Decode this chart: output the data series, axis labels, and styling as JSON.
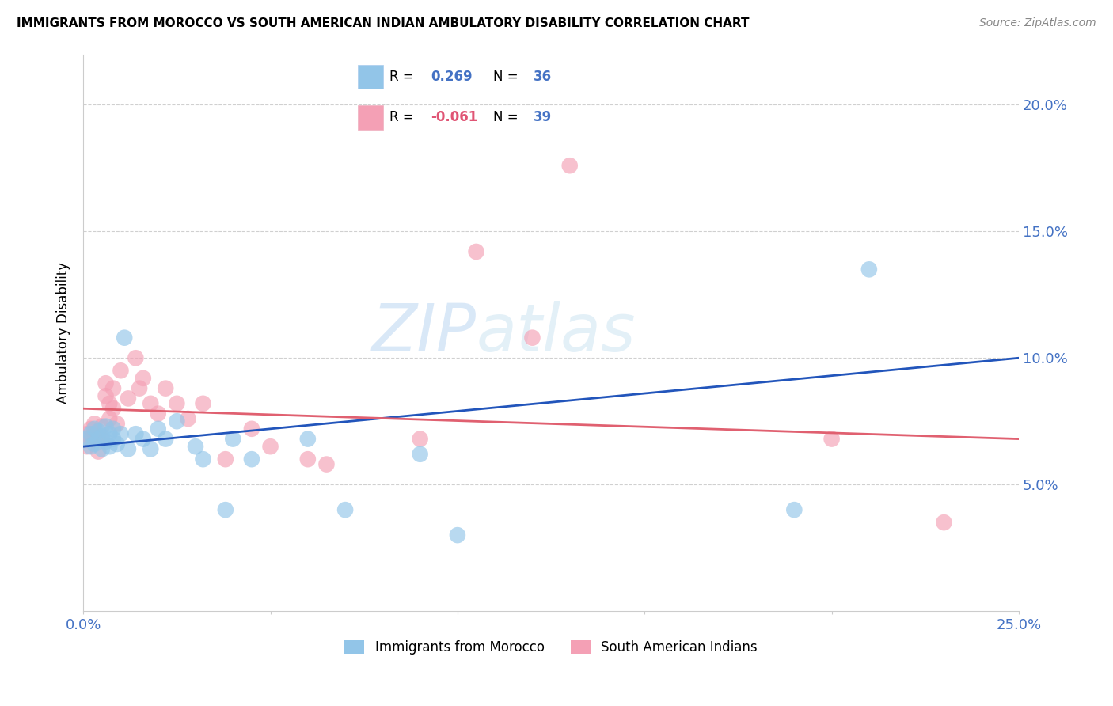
{
  "title": "IMMIGRANTS FROM MOROCCO VS SOUTH AMERICAN INDIAN AMBULATORY DISABILITY CORRELATION CHART",
  "source": "Source: ZipAtlas.com",
  "ylabel": "Ambulatory Disability",
  "xlim": [
    0.0,
    0.25
  ],
  "ylim": [
    0.0,
    0.22
  ],
  "yticks": [
    0.05,
    0.1,
    0.15,
    0.2
  ],
  "ytick_labels": [
    "5.0%",
    "10.0%",
    "15.0%",
    "20.0%"
  ],
  "xticks": [
    0.0,
    0.05,
    0.1,
    0.15,
    0.2,
    0.25
  ],
  "xtick_labels": [
    "0.0%",
    "",
    "",
    "",
    "",
    "25.0%"
  ],
  "watermark": "ZIPatlas",
  "blue_color": "#92C5E8",
  "pink_color": "#F4A0B5",
  "blue_line_color": "#2255BB",
  "pink_line_color": "#E06070",
  "tick_label_color": "#4472C4",
  "background_color": "#FFFFFF",
  "blue_line_y0": 0.065,
  "blue_line_y1": 0.1,
  "pink_line_y0": 0.08,
  "pink_line_y1": 0.068,
  "morocco_x": [
    0.001,
    0.002,
    0.002,
    0.003,
    0.003,
    0.004,
    0.004,
    0.005,
    0.005,
    0.006,
    0.006,
    0.007,
    0.007,
    0.008,
    0.008,
    0.009,
    0.01,
    0.011,
    0.012,
    0.014,
    0.016,
    0.018,
    0.02,
    0.022,
    0.025,
    0.03,
    0.032,
    0.038,
    0.04,
    0.045,
    0.06,
    0.07,
    0.09,
    0.1,
    0.19,
    0.21
  ],
  "morocco_y": [
    0.068,
    0.07,
    0.065,
    0.072,
    0.066,
    0.068,
    0.071,
    0.069,
    0.064,
    0.073,
    0.067,
    0.07,
    0.065,
    0.068,
    0.072,
    0.066,
    0.07,
    0.108,
    0.064,
    0.07,
    0.068,
    0.064,
    0.072,
    0.068,
    0.075,
    0.065,
    0.06,
    0.04,
    0.068,
    0.06,
    0.068,
    0.04,
    0.062,
    0.03,
    0.04,
    0.135
  ],
  "sa_x": [
    0.001,
    0.001,
    0.002,
    0.002,
    0.003,
    0.003,
    0.004,
    0.004,
    0.005,
    0.005,
    0.006,
    0.006,
    0.007,
    0.007,
    0.008,
    0.008,
    0.009,
    0.01,
    0.012,
    0.014,
    0.015,
    0.016,
    0.018,
    0.02,
    0.022,
    0.025,
    0.028,
    0.032,
    0.038,
    0.045,
    0.05,
    0.06,
    0.065,
    0.09,
    0.105,
    0.12,
    0.13,
    0.2,
    0.23
  ],
  "sa_y": [
    0.07,
    0.065,
    0.072,
    0.068,
    0.07,
    0.074,
    0.068,
    0.063,
    0.073,
    0.068,
    0.09,
    0.085,
    0.082,
    0.076,
    0.088,
    0.08,
    0.074,
    0.095,
    0.084,
    0.1,
    0.088,
    0.092,
    0.082,
    0.078,
    0.088,
    0.082,
    0.076,
    0.082,
    0.06,
    0.072,
    0.065,
    0.06,
    0.058,
    0.068,
    0.142,
    0.108,
    0.176,
    0.068,
    0.035
  ]
}
